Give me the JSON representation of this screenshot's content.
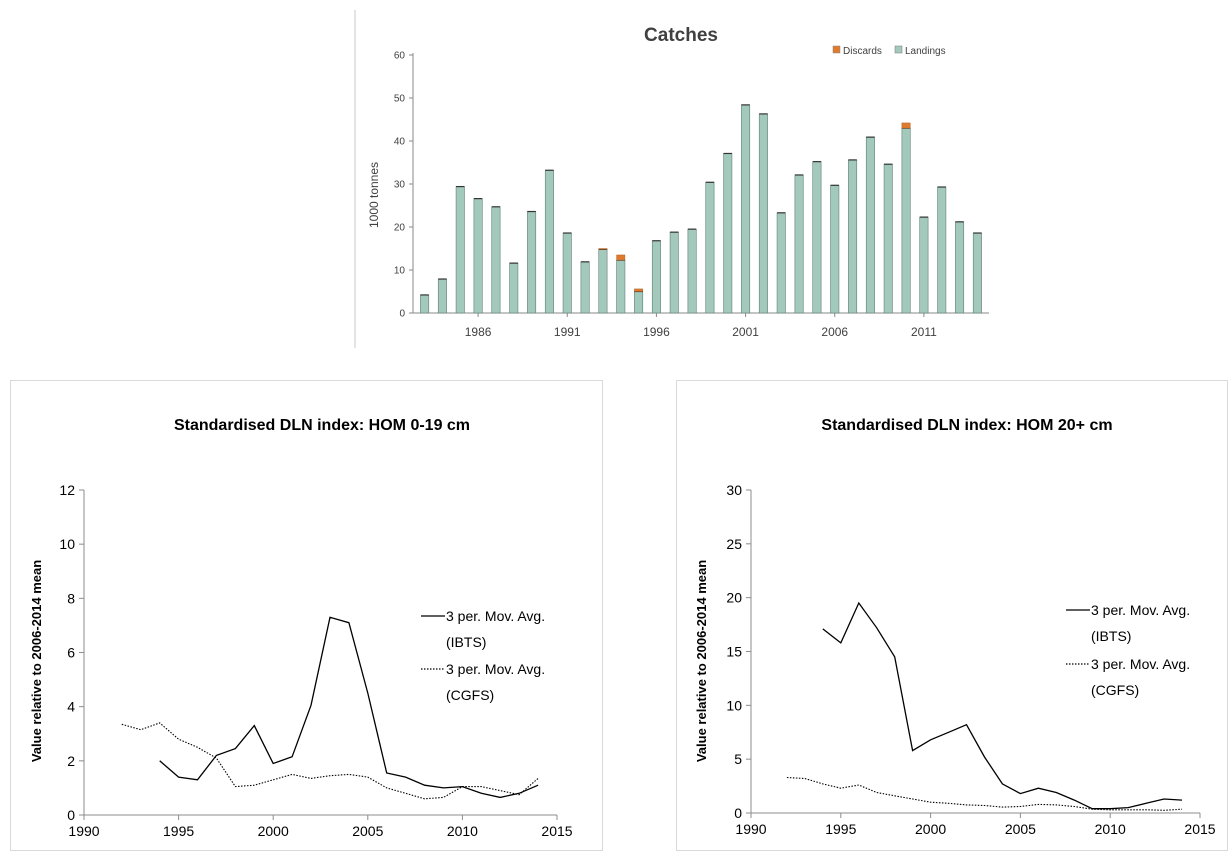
{
  "chart_data": [
    {
      "type": "bar",
      "stacked": true,
      "title": "Catches",
      "ylabel": "1000 tonnes",
      "xlabel": "",
      "ylim": [
        0,
        60
      ],
      "y_ticks": [
        0,
        10,
        20,
        30,
        40,
        50,
        60
      ],
      "x_tick_labels": [
        "1986",
        "1991",
        "1996",
        "2001",
        "2006",
        "2011"
      ],
      "categories": [
        1983,
        1984,
        1985,
        1986,
        1987,
        1988,
        1989,
        1990,
        1991,
        1992,
        1993,
        1994,
        1995,
        1996,
        1997,
        1998,
        1999,
        2000,
        2001,
        2002,
        2003,
        2004,
        2005,
        2006,
        2007,
        2008,
        2009,
        2010,
        2011,
        2012,
        2013,
        2014
      ],
      "series": [
        {
          "name": "Landings",
          "color": "#a3c9bd",
          "values": [
            4.2,
            7.9,
            29.4,
            26.6,
            24.7,
            11.6,
            23.6,
            33.2,
            18.6,
            11.9,
            14.8,
            12.3,
            5.0,
            16.8,
            18.8,
            19.5,
            30.4,
            37.1,
            48.4,
            46.3,
            23.3,
            32.1,
            35.2,
            29.7,
            35.6,
            40.9,
            34.6,
            43.0,
            22.3,
            29.3,
            21.2,
            18.6
          ]
        },
        {
          "name": "Discards",
          "color": "#e07b2e",
          "values": [
            0,
            0,
            0,
            0,
            0,
            0,
            0,
            0,
            0,
            0,
            0.2,
            1.2,
            0.6,
            0,
            0,
            0,
            0,
            0,
            0,
            0,
            0,
            0,
            0,
            0,
            0,
            0,
            0,
            1.2,
            0,
            0,
            0,
            0
          ]
        }
      ],
      "legend_position": "top-right",
      "grid": false
    },
    {
      "type": "line",
      "title": "Standardised DLN index: HOM 0-19 cm",
      "ylabel": "Value relative to 2006-2014 mean",
      "xlabel": "",
      "xlim": [
        1990,
        2015
      ],
      "ylim": [
        0,
        12
      ],
      "x_ticks": [
        1990,
        1995,
        2000,
        2005,
        2010,
        2015
      ],
      "y_ticks": [
        0,
        2,
        4,
        6,
        8,
        10,
        12
      ],
      "series": [
        {
          "name": "3 per. Mov. Avg. (IBTS)",
          "style": "solid",
          "x": [
            1994,
            1995,
            1996,
            1997,
            1998,
            1999,
            2000,
            2001,
            2002,
            2003,
            2004,
            2005,
            2006,
            2007,
            2008,
            2009,
            2010,
            2011,
            2012,
            2013,
            2014
          ],
          "y": [
            2.0,
            1.4,
            1.3,
            2.2,
            2.45,
            3.3,
            1.9,
            2.15,
            4.05,
            7.3,
            7.1,
            4.5,
            1.55,
            1.4,
            1.1,
            1.0,
            1.05,
            0.8,
            0.65,
            0.8,
            1.1
          ]
        },
        {
          "name": "3 per. Mov. Avg. (CGFS)",
          "style": "dotted",
          "x": [
            1992,
            1993,
            1994,
            1995,
            1996,
            1997,
            1998,
            1999,
            2000,
            2001,
            2002,
            2003,
            2004,
            2005,
            2006,
            2007,
            2008,
            2009,
            2010,
            2011,
            2012,
            2013,
            2014
          ],
          "y": [
            3.35,
            3.15,
            3.4,
            2.8,
            2.5,
            2.1,
            1.05,
            1.1,
            1.3,
            1.5,
            1.35,
            1.45,
            1.5,
            1.4,
            1.0,
            0.8,
            0.6,
            0.65,
            1.05,
            1.05,
            0.9,
            0.75,
            1.35
          ]
        }
      ],
      "legend_position": "right",
      "grid": false
    },
    {
      "type": "line",
      "title": "Standardised DLN index: HOM 20+ cm",
      "ylabel": "Value relative to 2006-2014 mean",
      "xlabel": "",
      "xlim": [
        1990,
        2015
      ],
      "ylim": [
        0,
        30
      ],
      "x_ticks": [
        1990,
        1995,
        2000,
        2005,
        2010,
        2015
      ],
      "y_ticks": [
        0,
        5,
        10,
        15,
        20,
        25,
        30
      ],
      "series": [
        {
          "name": "3 per. Mov. Avg. (IBTS)",
          "style": "solid",
          "x": [
            1994,
            1995,
            1996,
            1997,
            1998,
            1999,
            2000,
            2001,
            2002,
            2003,
            2004,
            2005,
            2006,
            2007,
            2008,
            2009,
            2010,
            2011,
            2012,
            2013,
            2014
          ],
          "y": [
            17.1,
            15.8,
            19.5,
            17.2,
            14.5,
            5.8,
            6.8,
            7.5,
            8.2,
            5.2,
            2.7,
            1.8,
            2.3,
            1.9,
            1.2,
            0.4,
            0.4,
            0.5,
            0.9,
            1.3,
            1.2
          ]
        },
        {
          "name": "3 per. Mov. Avg. (CGFS)",
          "style": "dotted",
          "x": [
            1992,
            1993,
            1994,
            1995,
            1996,
            1997,
            1998,
            1999,
            2000,
            2001,
            2002,
            2003,
            2004,
            2005,
            2006,
            2007,
            2008,
            2009,
            2010,
            2011,
            2012,
            2013,
            2014
          ],
          "y": [
            3.3,
            3.2,
            2.7,
            2.3,
            2.6,
            1.9,
            1.6,
            1.3,
            1.0,
            0.9,
            0.75,
            0.7,
            0.55,
            0.6,
            0.8,
            0.75,
            0.6,
            0.35,
            0.3,
            0.3,
            0.3,
            0.25,
            0.35
          ]
        }
      ],
      "legend_position": "right",
      "grid": false
    }
  ]
}
